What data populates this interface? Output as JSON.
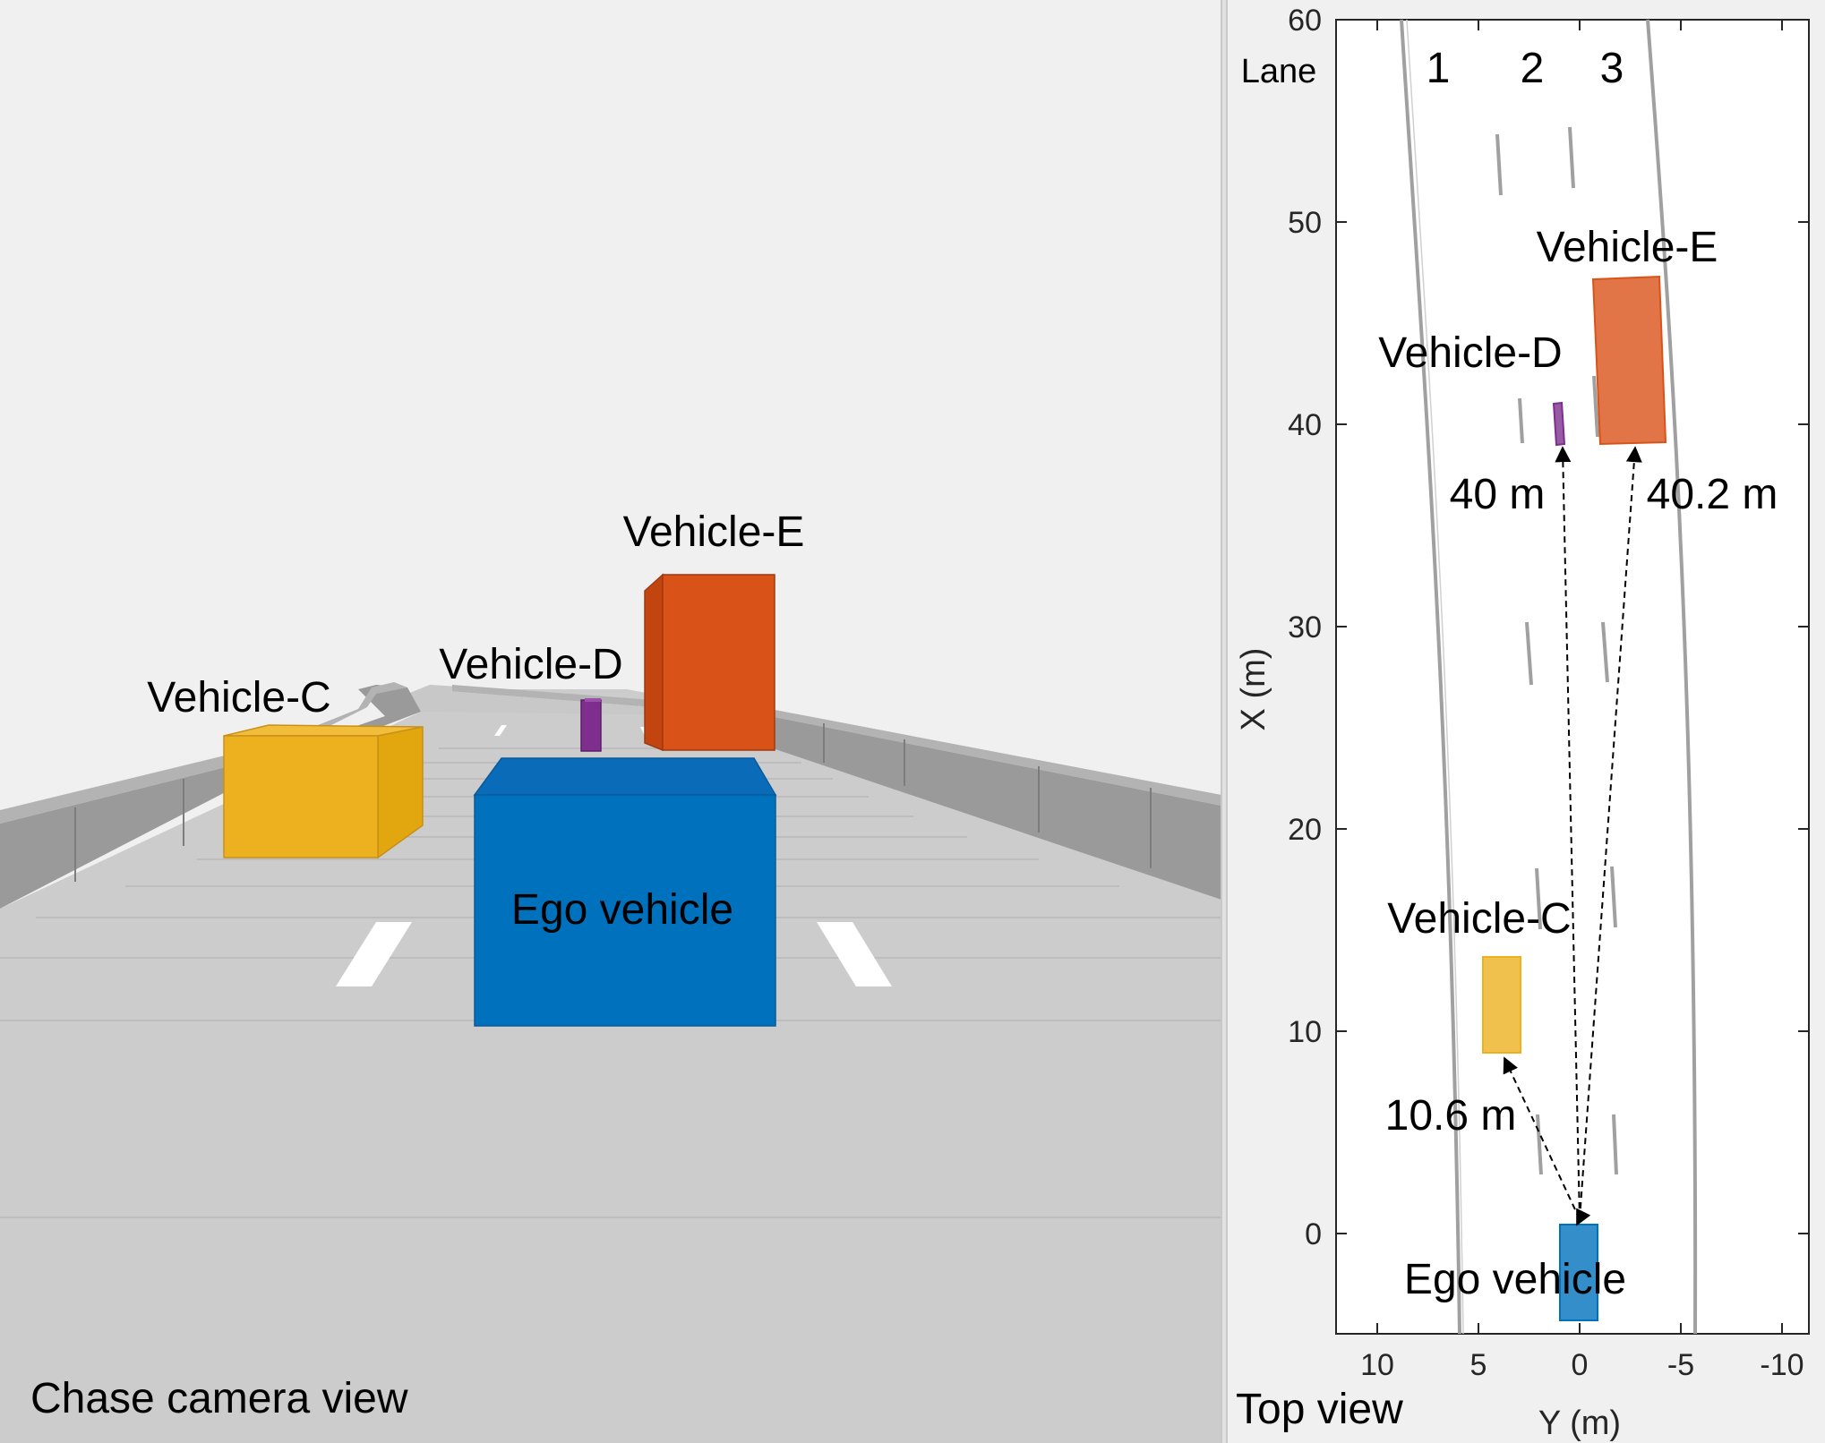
{
  "colors": {
    "ego": "#0072BD",
    "vehicle_c": "#EDB120",
    "vehicle_d": "#7E2F8E",
    "vehicle_e": "#D95319",
    "barrier": "#999999",
    "road": "#cccccc",
    "lane_line_top": "#a0a0a0"
  },
  "chase_view": {
    "label": "Chase camera view",
    "vehicles": {
      "vehicle_c": "Vehicle-C",
      "vehicle_d": "Vehicle-D",
      "vehicle_e": "Vehicle-E",
      "ego": "Ego vehicle"
    }
  },
  "top_view": {
    "label": "Top view",
    "lane_header": "Lane",
    "lanes": [
      "1",
      "2",
      "3"
    ],
    "vehicles": {
      "vehicle_c": "Vehicle-C",
      "vehicle_d": "Vehicle-D",
      "vehicle_e": "Vehicle-E",
      "ego": "Ego vehicle"
    },
    "distances": {
      "vehicle_c": "10.6 m",
      "vehicle_d": "40 m",
      "vehicle_e": "40.2 m"
    }
  },
  "chart_data": {
    "type": "scatter",
    "xlabel": "Y (m)",
    "ylabel": "X (m)",
    "xlim": [
      12,
      -12
    ],
    "ylim": [
      -5,
      60
    ],
    "xticks": [
      10,
      5,
      0,
      -5,
      -10
    ],
    "xtick_labels": [
      "10",
      "5",
      "0",
      "-5",
      "-10"
    ],
    "yticks": [
      0,
      10,
      20,
      30,
      40,
      50,
      60
    ],
    "ytick_labels": [
      "0",
      "10",
      "20",
      "30",
      "40",
      "50",
      "60"
    ],
    "grid": false,
    "vehicles": [
      {
        "id": "ego",
        "label": "Ego vehicle",
        "x_center": 0.5,
        "y_min": -1,
        "y_max": 1,
        "x_min": -4.2,
        "x_max": 0.6
      },
      {
        "id": "vehicle_c",
        "label": "Vehicle-C",
        "y_min": 3.1,
        "y_max": 4.9,
        "x_min": 9.0,
        "x_max": 13.6
      },
      {
        "id": "vehicle_d",
        "label": "Vehicle-D",
        "y_min": 0.6,
        "y_max": 1.1,
        "x_min": 39.0,
        "x_max": 41.0
      },
      {
        "id": "vehicle_e",
        "label": "Vehicle-E",
        "y_min": -4.3,
        "y_max": -0.7,
        "x_min": 39.0,
        "x_max": 47.0
      }
    ],
    "distances_m": {
      "vehicle_c": 10.6,
      "vehicle_d": 40,
      "vehicle_e": 40.2
    }
  }
}
